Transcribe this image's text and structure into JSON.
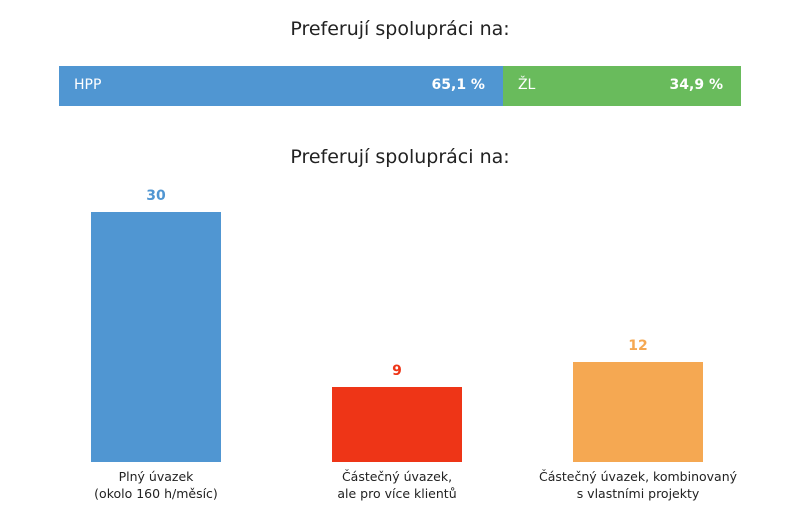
{
  "chart_data": [
    {
      "type": "bar",
      "orientation": "horizontal-stacked",
      "title": "Preferují spolupráci na:",
      "series": [
        {
          "name": "HPP",
          "value": 65.1,
          "label": "65,1 %",
          "color": "#5096d2"
        },
        {
          "name": "ŽL",
          "value": 34.9,
          "label": "34,9 %",
          "color": "#69bb5c"
        }
      ]
    },
    {
      "type": "bar",
      "title": "Preferují spolupráci na:",
      "categories": [
        [
          "Plný úvazek",
          "(okolo 160 h/měsíc)"
        ],
        [
          "Částečný úvazek,",
          "ale pro více klientů"
        ],
        [
          "Částečný úvazek, kombinovaný",
          "s vlastními projekty"
        ]
      ],
      "values": [
        30,
        9,
        12
      ],
      "labels": [
        "30",
        "9",
        "12"
      ],
      "colors": [
        "#5096d2",
        "#ee3517",
        "#f5a852"
      ],
      "ylim": [
        0,
        30
      ]
    }
  ]
}
